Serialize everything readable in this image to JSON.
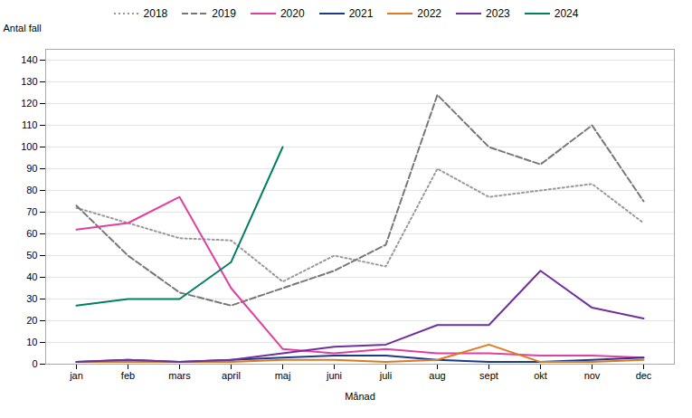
{
  "chart_data": {
    "type": "line",
    "xlabel": "Månad",
    "ylabel": "Antal fall",
    "categories": [
      "jan",
      "feb",
      "mars",
      "april",
      "maj",
      "juni",
      "juli",
      "aug",
      "sept",
      "okt",
      "nov",
      "dec"
    ],
    "series": [
      {
        "name": "2018",
        "color": "#999999",
        "line_style": "dotted",
        "values": [
          72,
          65,
          58,
          57,
          38,
          50,
          45,
          90,
          77,
          80,
          83,
          65
        ]
      },
      {
        "name": "2019",
        "color": "#777777",
        "line_style": "dashed",
        "values": [
          73,
          50,
          33,
          27,
          35,
          43,
          55,
          124,
          100,
          92,
          110,
          75
        ]
      },
      {
        "name": "2020",
        "color": "#e040a0",
        "line_style": "solid",
        "values": [
          62,
          65,
          77,
          35,
          7,
          5,
          7,
          5,
          5,
          4,
          4,
          3
        ]
      },
      {
        "name": "2021",
        "color": "#1a3a8c",
        "line_style": "solid",
        "values": [
          1,
          2,
          1,
          2,
          3,
          4,
          4,
          2,
          1,
          1,
          2,
          3
        ]
      },
      {
        "name": "2022",
        "color": "#e07820",
        "line_style": "solid",
        "values": [
          1,
          1,
          1,
          1,
          2,
          2,
          1,
          2,
          9,
          1,
          1,
          2
        ]
      },
      {
        "name": "2023",
        "color": "#7030a0",
        "line_style": "solid",
        "values": [
          1,
          2,
          1,
          2,
          5,
          8,
          9,
          18,
          18,
          43,
          26,
          21
        ]
      },
      {
        "name": "2024",
        "color": "#008060",
        "line_style": "solid",
        "values": [
          27,
          30,
          30,
          47,
          100,
          null,
          null,
          null,
          null,
          null,
          null,
          null
        ]
      }
    ],
    "ylim": [
      0,
      145
    ],
    "yticks": [
      0,
      10,
      20,
      30,
      40,
      50,
      60,
      70,
      80,
      90,
      100,
      110,
      120,
      130,
      140
    ],
    "grid": true,
    "legend": "top"
  }
}
